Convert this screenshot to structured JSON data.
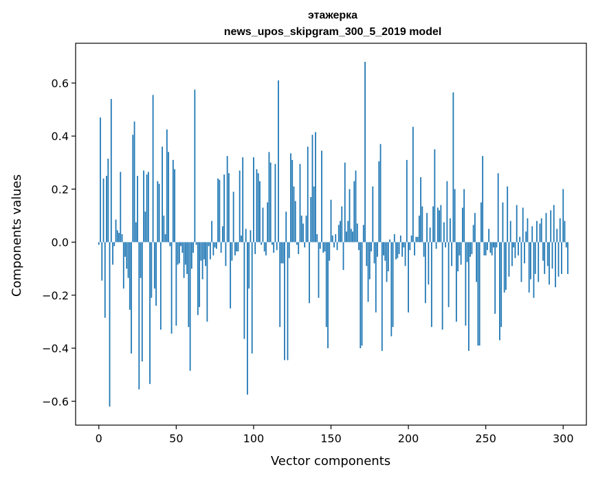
{
  "chart_data": {
    "type": "bar",
    "title_line1": "этажерка",
    "title_line2": "news_upos_skipgram_300_5_2019 model",
    "xlabel": "Vector components",
    "ylabel": "Components values",
    "xlim": [
      -15,
      315
    ],
    "ylim": [
      -0.69,
      0.75
    ],
    "xticks": [
      0,
      50,
      100,
      150,
      200,
      250,
      300
    ],
    "xtick_labels": [
      "0",
      "50",
      "100",
      "150",
      "200",
      "250",
      "300"
    ],
    "yticks": [
      -0.6,
      -0.4,
      -0.2,
      0.0,
      0.2,
      0.4,
      0.6
    ],
    "ytick_labels": [
      "−0.6",
      "−0.4",
      "−0.2",
      "0.0",
      "0.2",
      "0.4",
      "0.6"
    ],
    "bar_color": "#1f77b4",
    "grid": false,
    "values": [
      -0.01,
      0.47,
      -0.145,
      0.24,
      -0.285,
      0.25,
      0.315,
      -0.62,
      0.54,
      -0.085,
      -0.015,
      0.085,
      0.045,
      0.035,
      0.265,
      0.03,
      -0.175,
      -0.055,
      -0.1,
      -0.135,
      -0.255,
      -0.42,
      0.405,
      0.455,
      0.075,
      0.25,
      -0.555,
      -0.135,
      -0.45,
      0.27,
      0.115,
      0.255,
      0.265,
      -0.535,
      -0.21,
      0.555,
      -0.175,
      -0.24,
      0.23,
      0.22,
      -0.33,
      0.36,
      0.1,
      0.03,
      0.425,
      0.34,
      -0.015,
      -0.345,
      0.31,
      0.275,
      -0.315,
      -0.085,
      -0.08,
      -0.015,
      -0.04,
      -0.135,
      -0.085,
      -0.12,
      -0.32,
      -0.485,
      -0.1,
      -0.04,
      0.575,
      -0.01,
      -0.275,
      -0.245,
      -0.07,
      -0.14,
      -0.065,
      -0.09,
      -0.3,
      -0.015,
      -0.065,
      0.08,
      -0.05,
      -0.02,
      -0.025,
      0.24,
      0.235,
      -0.04,
      0.06,
      0.255,
      -0.09,
      0.325,
      0.26,
      -0.25,
      -0.07,
      0.19,
      -0.05,
      -0.035,
      -0.035,
      0.27,
      0.025,
      0.32,
      -0.365,
      0.05,
      -0.575,
      -0.175,
      0.045,
      -0.42,
      0.32,
      -0.045,
      0.275,
      0.26,
      0.23,
      -0.01,
      0.13,
      -0.035,
      -0.05,
      0.15,
      0.34,
      0.3,
      -0.01,
      -0.04,
      0.295,
      -0.03,
      0.61,
      -0.32,
      -0.08,
      -0.08,
      -0.445,
      0.115,
      -0.445,
      -0.06,
      0.335,
      0.31,
      0.21,
      0.155,
      -0.01,
      -0.045,
      0.295,
      0.1,
      0.07,
      -0.02,
      0.1,
      0.36,
      -0.23,
      0.17,
      0.405,
      0.21,
      0.415,
      0.03,
      -0.21,
      -0.025,
      0.345,
      -0.04,
      -0.035,
      -0.32,
      -0.4,
      -0.07,
      0.16,
      0.025,
      -0.02,
      0.03,
      -0.03,
      0.065,
      0.08,
      0.135,
      -0.105,
      0.3,
      0.04,
      0.08,
      0.2,
      0.05,
      0.04,
      0.23,
      0.27,
      0.07,
      -0.03,
      -0.4,
      -0.39,
      0.065,
      0.68,
      -0.09,
      -0.225,
      -0.14,
      -0.035,
      0.21,
      -0.08,
      -0.265,
      -0.055,
      0.305,
      0.37,
      -0.41,
      -0.05,
      -0.07,
      -0.15,
      -0.11,
      0.01,
      -0.355,
      -0.32,
      0.03,
      -0.065,
      -0.06,
      -0.045,
      0.025,
      -0.055,
      -0.02,
      -0.09,
      0.31,
      -0.265,
      -0.03,
      0.025,
      0.435,
      -0.05,
      0.02,
      0.02,
      0.1,
      0.245,
      0.135,
      -0.055,
      -0.23,
      0.11,
      -0.16,
      0.055,
      -0.32,
      0.135,
      0.35,
      -0.025,
      0.13,
      0.12,
      0.14,
      -0.33,
      0.075,
      -0.02,
      0.23,
      -0.245,
      0.09,
      -0.09,
      0.565,
      0.2,
      -0.3,
      -0.11,
      -0.05,
      -0.085,
      0.13,
      0.2,
      -0.315,
      -0.075,
      -0.41,
      -0.055,
      -0.045,
      0.065,
      0.11,
      -0.15,
      -0.39,
      -0.39,
      0.15,
      0.325,
      -0.05,
      -0.05,
      -0.03,
      0.05,
      -0.04,
      -0.05,
      -0.02,
      -0.27,
      -0.02,
      0.26,
      -0.37,
      -0.32,
      0.15,
      -0.19,
      -0.18,
      0.21,
      -0.13,
      0.08,
      -0.09,
      -0.02,
      -0.06,
      0.14,
      -0.05,
      0.02,
      -0.15,
      0.13,
      -0.08,
      0.04,
      0.09,
      -0.19,
      -0.14,
      0.06,
      -0.21,
      -0.12,
      0.08,
      -0.15,
      0.07,
      0.09,
      -0.07,
      -0.12,
      0.11,
      -0.09,
      -0.16,
      0.12,
      -0.1,
      0.14,
      -0.17,
      0.05,
      -0.13,
      0.09,
      -0.12,
      0.2,
      0.08,
      -0.02,
      -0.12
    ]
  }
}
